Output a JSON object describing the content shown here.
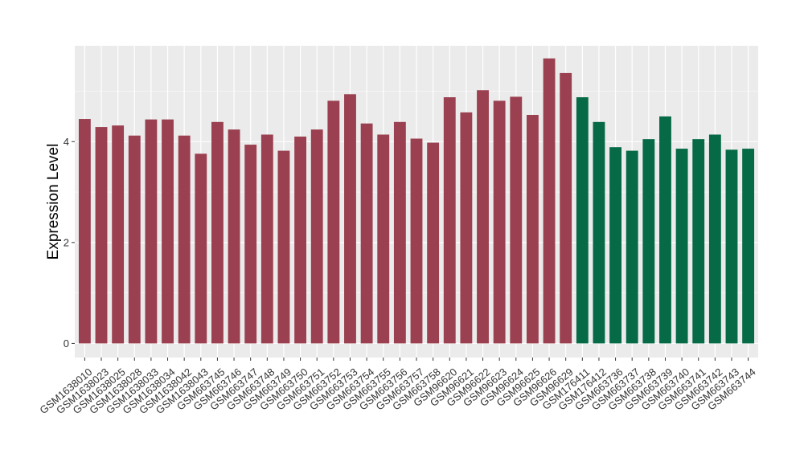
{
  "chart_data": {
    "type": "bar",
    "ylabel": "Expression Level",
    "xlabel": "",
    "title": "",
    "ylim": [
      -0.28,
      5.9
    ],
    "yticks": [
      0,
      2,
      4
    ],
    "grid": true,
    "categories": [
      "GSM1638010",
      "GSM1638023",
      "GSM1638025",
      "GSM1638028",
      "GSM1638033",
      "GSM1638034",
      "GSM1638042",
      "GSM1638043",
      "GSM663745",
      "GSM663746",
      "GSM663747",
      "GSM663748",
      "GSM663749",
      "GSM663750",
      "GSM663751",
      "GSM663752",
      "GSM663753",
      "GSM663754",
      "GSM663755",
      "GSM663756",
      "GSM663757",
      "GSM663758",
      "GSM96620",
      "GSM96621",
      "GSM96622",
      "GSM96623",
      "GSM96624",
      "GSM96625",
      "GSM96626",
      "GSM96629",
      "GSM176411",
      "GSM176412",
      "GSM663736",
      "GSM663737",
      "GSM663738",
      "GSM663739",
      "GSM663740",
      "GSM663741",
      "GSM663742",
      "GSM663743",
      "GSM663744"
    ],
    "values": [
      4.45,
      4.29,
      4.32,
      4.12,
      4.44,
      4.44,
      4.12,
      3.76,
      4.39,
      4.24,
      3.94,
      4.14,
      3.82,
      4.1,
      4.24,
      4.81,
      4.94,
      4.36,
      4.14,
      4.39,
      4.06,
      3.98,
      4.88,
      4.58,
      5.02,
      4.81,
      4.89,
      4.53,
      5.65,
      5.36,
      4.88,
      4.39,
      3.89,
      3.82,
      4.05,
      4.5,
      3.86,
      4.05,
      4.14,
      3.84,
      3.86
    ],
    "group_colors": [
      "#9b4050",
      "#9b4050",
      "#9b4050",
      "#9b4050",
      "#9b4050",
      "#9b4050",
      "#9b4050",
      "#9b4050",
      "#9b4050",
      "#9b4050",
      "#9b4050",
      "#9b4050",
      "#9b4050",
      "#9b4050",
      "#9b4050",
      "#9b4050",
      "#9b4050",
      "#9b4050",
      "#9b4050",
      "#9b4050",
      "#9b4050",
      "#9b4050",
      "#9b4050",
      "#9b4050",
      "#9b4050",
      "#9b4050",
      "#9b4050",
      "#9b4050",
      "#9b4050",
      "#9b4050",
      "#056a45",
      "#056a45",
      "#056a45",
      "#056a45",
      "#056a45",
      "#056a45",
      "#056a45",
      "#056a45",
      "#056a45",
      "#056a45",
      "#056a45"
    ],
    "panel_color": "#ebebeb",
    "grid_color": "#ffffff"
  }
}
